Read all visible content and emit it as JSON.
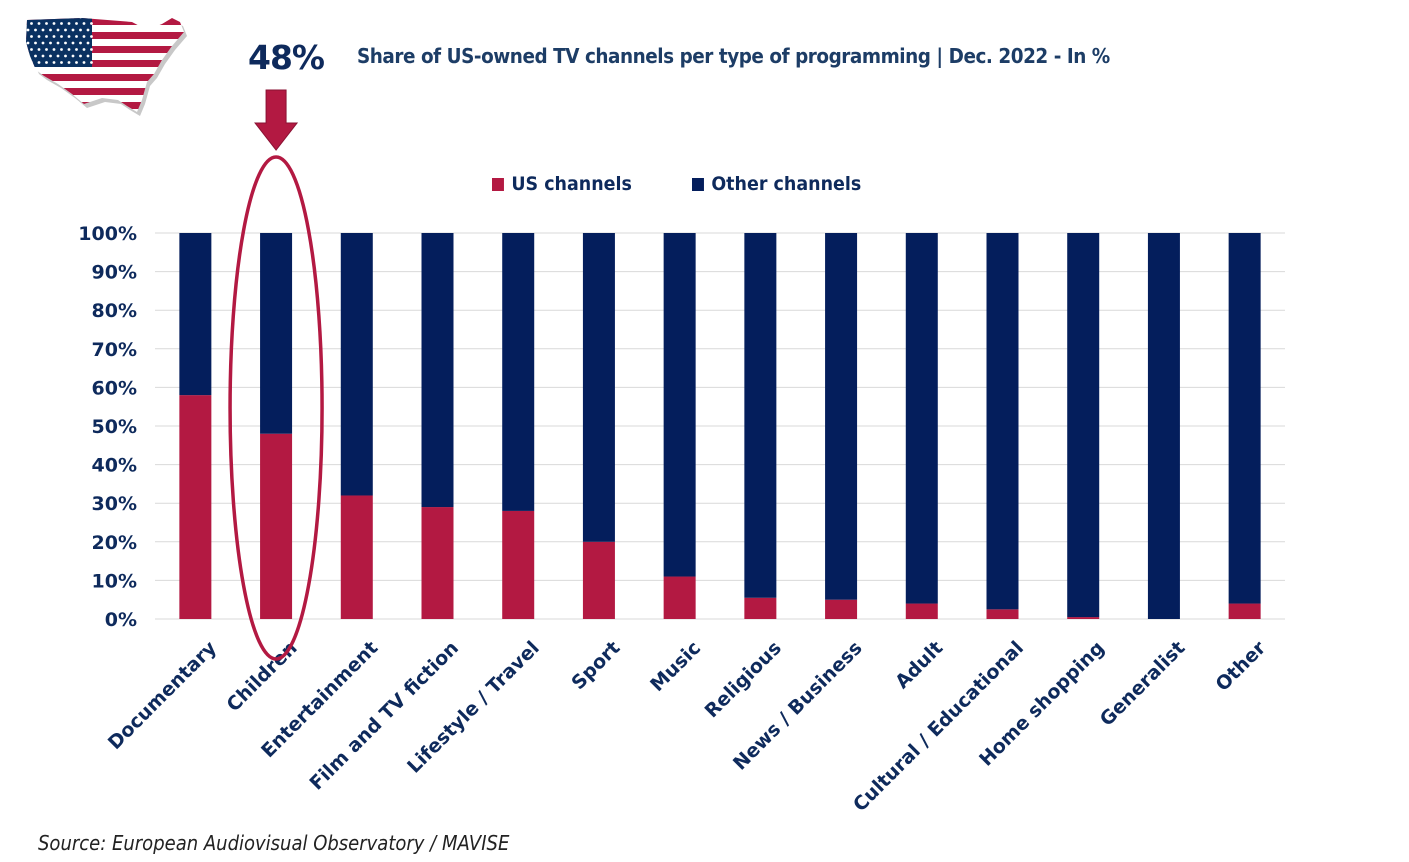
{
  "callout": {
    "value": "48%",
    "highlighted_category": "Children"
  },
  "source": "Source: European Audiovisual Observatory / MAVISE",
  "colors": {
    "us": "#b31942",
    "other": "#041e5c",
    "text": "#0e2a5c",
    "grid": "#d9d9d9"
  },
  "chart_data": {
    "type": "bar",
    "stacked": true,
    "title": "Share of US-owned TV channels per type of programming | Dec. 2022 - In %",
    "xlabel": "",
    "ylabel": "",
    "ylim": [
      0,
      100
    ],
    "yticks": [
      "0%",
      "10%",
      "20%",
      "30%",
      "40%",
      "50%",
      "60%",
      "70%",
      "80%",
      "90%",
      "100%"
    ],
    "grid": true,
    "legend_position": "top-center",
    "categories": [
      "Documentary",
      "Children",
      "Entertainment",
      "Film and TV fiction",
      "Lifestyle / Travel",
      "Sport",
      "Music",
      "Religious",
      "News / Business",
      "Adult",
      "Cultural / Educational",
      "Home shopping",
      "Generalist",
      "Other"
    ],
    "series": [
      {
        "name": "US channels",
        "values": [
          58,
          48,
          32,
          29,
          28,
          20,
          11,
          5.5,
          5,
          4,
          2.5,
          0.5,
          0,
          4
        ]
      },
      {
        "name": "Other channels",
        "values": [
          42,
          52,
          68,
          71,
          72,
          80,
          89,
          94.5,
          95,
          96,
          97.5,
          99.5,
          100,
          96
        ]
      }
    ]
  }
}
